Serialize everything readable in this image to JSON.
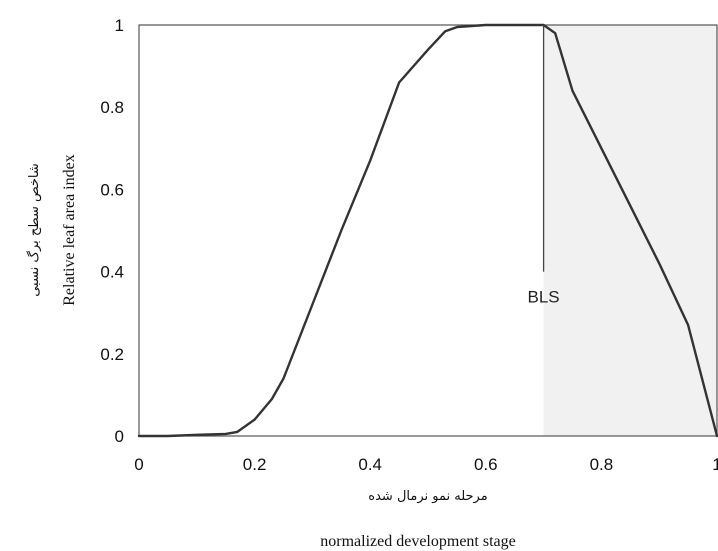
{
  "chart_data": {
    "type": "line",
    "title": "",
    "xlabel": "normalized development stage",
    "xlabel_fa": "مرحله نمو نرمال شده",
    "ylabel": "Relative leaf area index",
    "ylabel_fa": "شاخص سطح برگ نسبی",
    "xlim": [
      0,
      1
    ],
    "ylim": [
      0,
      1
    ],
    "xticks": [
      "0",
      "0.2",
      "0.4",
      "0.6",
      "0.8",
      "1"
    ],
    "yticks": [
      "0",
      "0.2",
      "0.4",
      "0.6",
      "0.8",
      "1"
    ],
    "grid": false,
    "series": [
      {
        "x": [
          0,
          0.05,
          0.1,
          0.15,
          0.17,
          0.2,
          0.23,
          0.25,
          0.3,
          0.35,
          0.4,
          0.45,
          0.5,
          0.53,
          0.55,
          0.6,
          0.62,
          0.65,
          0.7,
          0.72,
          0.75,
          0.8,
          0.85,
          0.9,
          0.95,
          1
        ],
        "y": [
          0,
          0,
          0.003,
          0.005,
          0.01,
          0.04,
          0.09,
          0.14,
          0.32,
          0.5,
          0.67,
          0.86,
          0.94,
          0.985,
          0.995,
          1,
          1,
          1,
          1,
          0.98,
          0.84,
          0.7,
          0.56,
          0.42,
          0.27,
          0
        ]
      }
    ],
    "annotations": [
      {
        "text": "BLS",
        "x": 0.7,
        "y_from": 1.0,
        "y_to": 0.4,
        "label_y": 0.34
      }
    ]
  }
}
